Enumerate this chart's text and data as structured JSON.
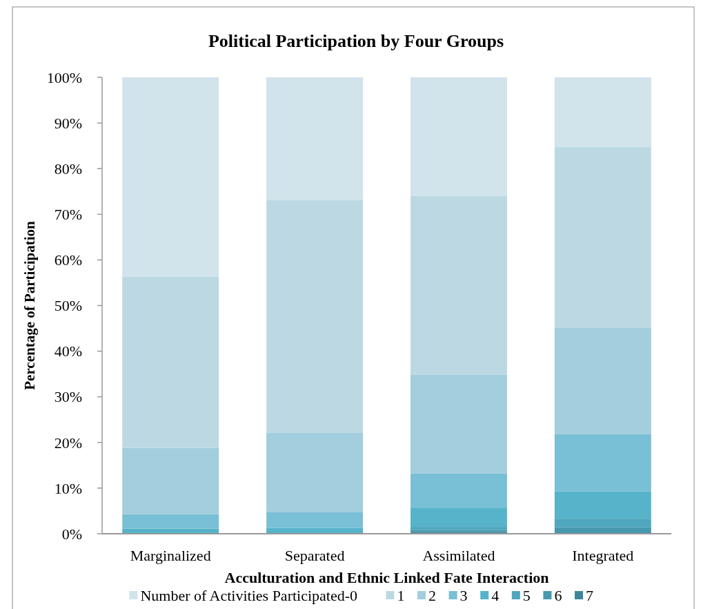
{
  "chart_data": {
    "type": "bar",
    "title": "Political Participation by Four Groups",
    "xlabel": "Acculturation and Ethnic Linked Fate Interaction",
    "ylabel": "Percentage of Participation",
    "categories": [
      "Marginalized",
      "Separated",
      "Assimilated",
      "Integrated"
    ],
    "stacked": true,
    "series": [
      {
        "name": "7",
        "color": "#3c8799",
        "values": [
          0,
          0,
          0.4,
          0
        ]
      },
      {
        "name": "6",
        "color": "#4698ad",
        "values": [
          0,
          0,
          0.4,
          1.4
        ]
      },
      {
        "name": "5",
        "color": "#4fa6bd",
        "values": [
          0,
          0,
          0.7,
          1.9
        ]
      },
      {
        "name": "4",
        "color": "#56b3ca",
        "values": [
          1.1,
          1.3,
          4.1,
          6.0
        ]
      },
      {
        "name": "3",
        "color": "#79bfd5",
        "values": [
          3.2,
          3.4,
          7.6,
          12.5
        ]
      },
      {
        "name": "2",
        "color": "#a2cedd",
        "values": [
          14.5,
          17.4,
          21.7,
          23.3
        ]
      },
      {
        "name": "1",
        "color": "#bcd9e3",
        "values": [
          37.5,
          51.0,
          39.1,
          39.6
        ]
      },
      {
        "name": "Number of Activities Participated-0",
        "color": "#d1e3eb",
        "values": [
          43.7,
          26.9,
          26.0,
          15.3
        ]
      }
    ],
    "ylim": [
      0,
      100
    ],
    "yticks": [
      {
        "value": 0,
        "label": "0%"
      },
      {
        "value": 10,
        "label": "10%"
      },
      {
        "value": 20,
        "label": "20%"
      },
      {
        "value": 30,
        "label": "30%"
      },
      {
        "value": 40,
        "label": "40%"
      },
      {
        "value": 50,
        "label": "50%"
      },
      {
        "value": 60,
        "label": "60%"
      },
      {
        "value": 70,
        "label": "70%"
      },
      {
        "value": 80,
        "label": "80%"
      },
      {
        "value": 90,
        "label": "90%"
      },
      {
        "value": 100,
        "label": "100%"
      }
    ],
    "grid": false,
    "legend": "bottom"
  }
}
